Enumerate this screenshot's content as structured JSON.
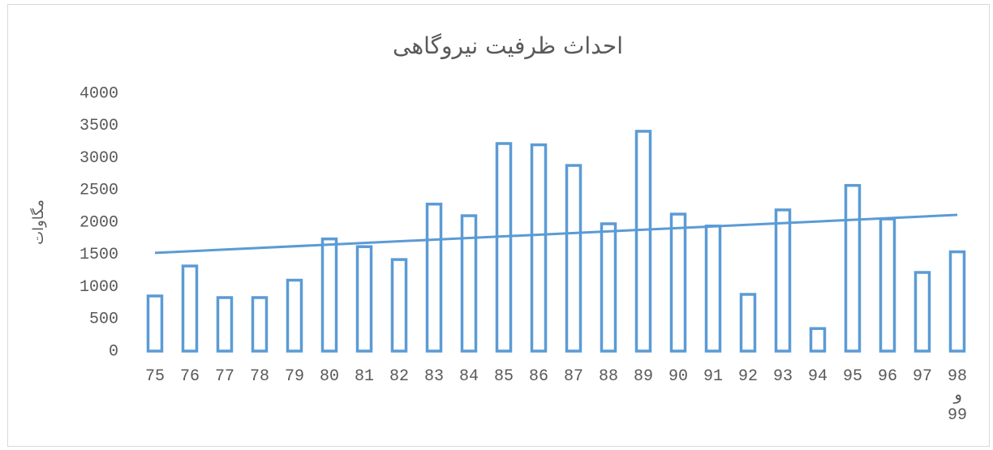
{
  "chart_data": {
    "type": "bar",
    "title": "احداث ظرفیت نیروگاهی",
    "y_label": "مگاوات",
    "categories": [
      "75",
      "76",
      "77",
      "78",
      "79",
      "80",
      "81",
      "82",
      "83",
      "84",
      "85",
      "86",
      "87",
      "88",
      "89",
      "90",
      "91",
      "92",
      "93",
      "94",
      "95",
      "96",
      "97",
      "98 و 99"
    ],
    "values": [
      855,
      1320,
      830,
      830,
      1100,
      1740,
      1620,
      1420,
      2280,
      2100,
      3220,
      3200,
      2880,
      1975,
      3410,
      2125,
      1940,
      880,
      2190,
      350,
      2570,
      2050,
      1220,
      1540
    ],
    "color": "#5b9bd5",
    "trendline": "linear",
    "ylim": [
      0,
      4000
    ],
    "yticks": [
      0,
      500,
      1000,
      1500,
      2000,
      2500,
      3000,
      3500,
      4000
    ],
    "grid": false
  }
}
